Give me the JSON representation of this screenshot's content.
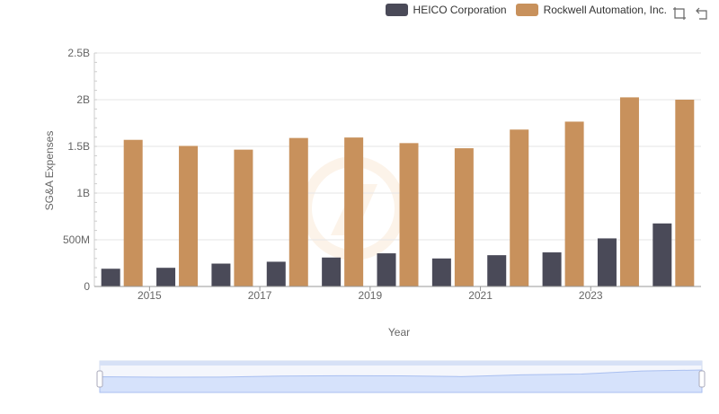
{
  "chart_data": {
    "type": "bar",
    "xlabel": "Year",
    "ylabel": "SG&A Expenses",
    "x": [
      2014,
      2015,
      2016,
      2017,
      2018,
      2019,
      2020,
      2021,
      2022,
      2023,
      2024
    ],
    "x_tick_labels": [
      "2015",
      "2017",
      "2019",
      "2021",
      "2023"
    ],
    "y_tick_labels": [
      "0",
      "500M",
      "1B",
      "1.5B",
      "2B",
      "2.5B"
    ],
    "ylim": [
      0,
      2500000000
    ],
    "grid": true,
    "legend_position": "top-right",
    "series": [
      {
        "name": "HEICO Corporation",
        "color": "#4a4a58",
        "values": [
          190000000,
          200000000,
          245000000,
          265000000,
          310000000,
          355000000,
          300000000,
          335000000,
          365000000,
          515000000,
          675000000
        ]
      },
      {
        "name": "Rockwell Automation, Inc.",
        "color": "#c8915c",
        "values": [
          1570000000,
          1505000000,
          1465000000,
          1590000000,
          1595000000,
          1535000000,
          1480000000,
          1680000000,
          1765000000,
          2025000000,
          2000000000
        ]
      }
    ]
  },
  "toolbar": {
    "zoom_icon": "zoom-select-icon",
    "restore_icon": "restore-icon"
  },
  "zoom_slider": {
    "start_pct": 0,
    "end_pct": 100
  }
}
